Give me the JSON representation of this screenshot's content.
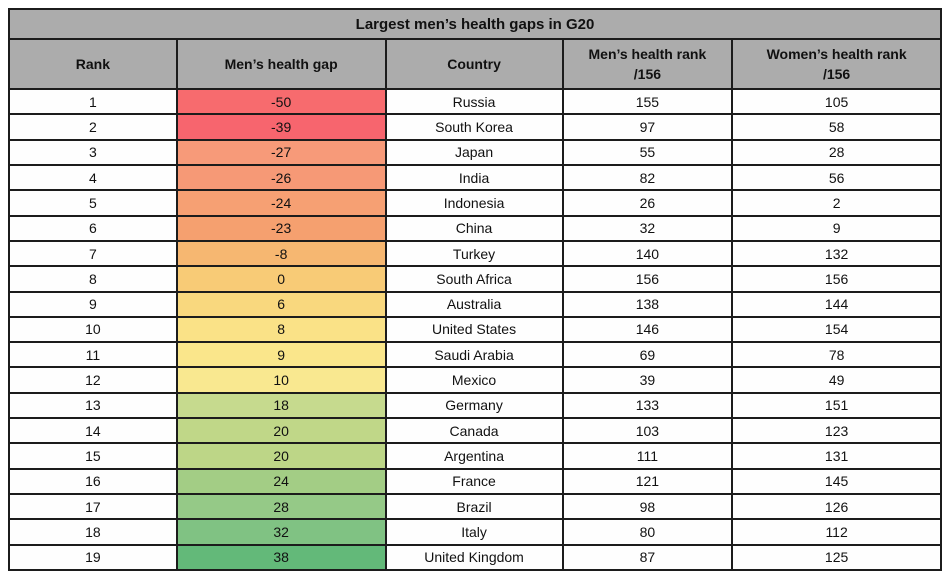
{
  "chart_data": {
    "type": "table",
    "title": "Largest men’s health gaps in G20",
    "columns": [
      {
        "label": "Rank"
      },
      {
        "label": "Men’s health gap"
      },
      {
        "label": "Country"
      },
      {
        "label": "Men’s health rank",
        "sub": "/156"
      },
      {
        "label": "Women’s health rank",
        "sub": "/156"
      }
    ],
    "rows": [
      {
        "rank": 1,
        "gap": -50,
        "country": "Russia",
        "men_rank": 155,
        "women_rank": 105,
        "gap_color": "#f76b6e"
      },
      {
        "rank": 2,
        "gap": -39,
        "country": "South Korea",
        "men_rank": 97,
        "women_rank": 58,
        "gap_color": "#f7656e"
      },
      {
        "rank": 3,
        "gap": -27,
        "country": "Japan",
        "men_rank": 55,
        "women_rank": 28,
        "gap_color": "#f79a79"
      },
      {
        "rank": 4,
        "gap": -26,
        "country": "India",
        "men_rank": 82,
        "women_rank": 56,
        "gap_color": "#f69976"
      },
      {
        "rank": 5,
        "gap": -24,
        "country": "Indonesia",
        "men_rank": 26,
        "women_rank": 2,
        "gap_color": "#f6a073"
      },
      {
        "rank": 6,
        "gap": -23,
        "country": "China",
        "men_rank": 32,
        "women_rank": 9,
        "gap_color": "#f5a06f"
      },
      {
        "rank": 7,
        "gap": -8,
        "country": "Turkey",
        "men_rank": 140,
        "women_rank": 132,
        "gap_color": "#f6b771"
      },
      {
        "rank": 8,
        "gap": 0,
        "country": "South Africa",
        "men_rank": 156,
        "women_rank": 156,
        "gap_color": "#f8cb76"
      },
      {
        "rank": 9,
        "gap": 6,
        "country": "Australia",
        "men_rank": 138,
        "women_rank": 144,
        "gap_color": "#f9d87e"
      },
      {
        "rank": 10,
        "gap": 8,
        "country": "United States",
        "men_rank": 146,
        "women_rank": 154,
        "gap_color": "#fae287"
      },
      {
        "rank": 11,
        "gap": 9,
        "country": "Saudi Arabia",
        "men_rank": 69,
        "women_rank": 78,
        "gap_color": "#fae68b"
      },
      {
        "rank": 12,
        "gap": 10,
        "country": "Mexico",
        "men_rank": 39,
        "women_rank": 49,
        "gap_color": "#f9e890"
      },
      {
        "rank": 13,
        "gap": 18,
        "country": "Germany",
        "men_rank": 133,
        "women_rank": 151,
        "gap_color": "#c6da8e"
      },
      {
        "rank": 14,
        "gap": 20,
        "country": "Canada",
        "men_rank": 103,
        "women_rank": 123,
        "gap_color": "#c0d788"
      },
      {
        "rank": 15,
        "gap": 20,
        "country": "Argentina",
        "men_rank": 111,
        "women_rank": 131,
        "gap_color": "#bdd687"
      },
      {
        "rank": 16,
        "gap": 24,
        "country": "France",
        "men_rank": 121,
        "women_rank": 145,
        "gap_color": "#a3cd85"
      },
      {
        "rank": 17,
        "gap": 28,
        "country": "Brazil",
        "men_rank": 98,
        "women_rank": 126,
        "gap_color": "#95c987"
      },
      {
        "rank": 18,
        "gap": 32,
        "country": "Italy",
        "men_rank": 80,
        "women_rank": 112,
        "gap_color": "#80c283"
      },
      {
        "rank": 19,
        "gap": 38,
        "country": "United Kingdom",
        "men_rank": 87,
        "women_rank": 125,
        "gap_color": "#63b979"
      }
    ],
    "colors": {
      "header_bg": "#acacac",
      "border": "#1c1c1c",
      "row_bg": "#fefefe",
      "text": "#111111"
    },
    "layout": {
      "legend": "none",
      "grid": "full cell borders",
      "gap_column_scale": "red negative to green positive"
    }
  }
}
